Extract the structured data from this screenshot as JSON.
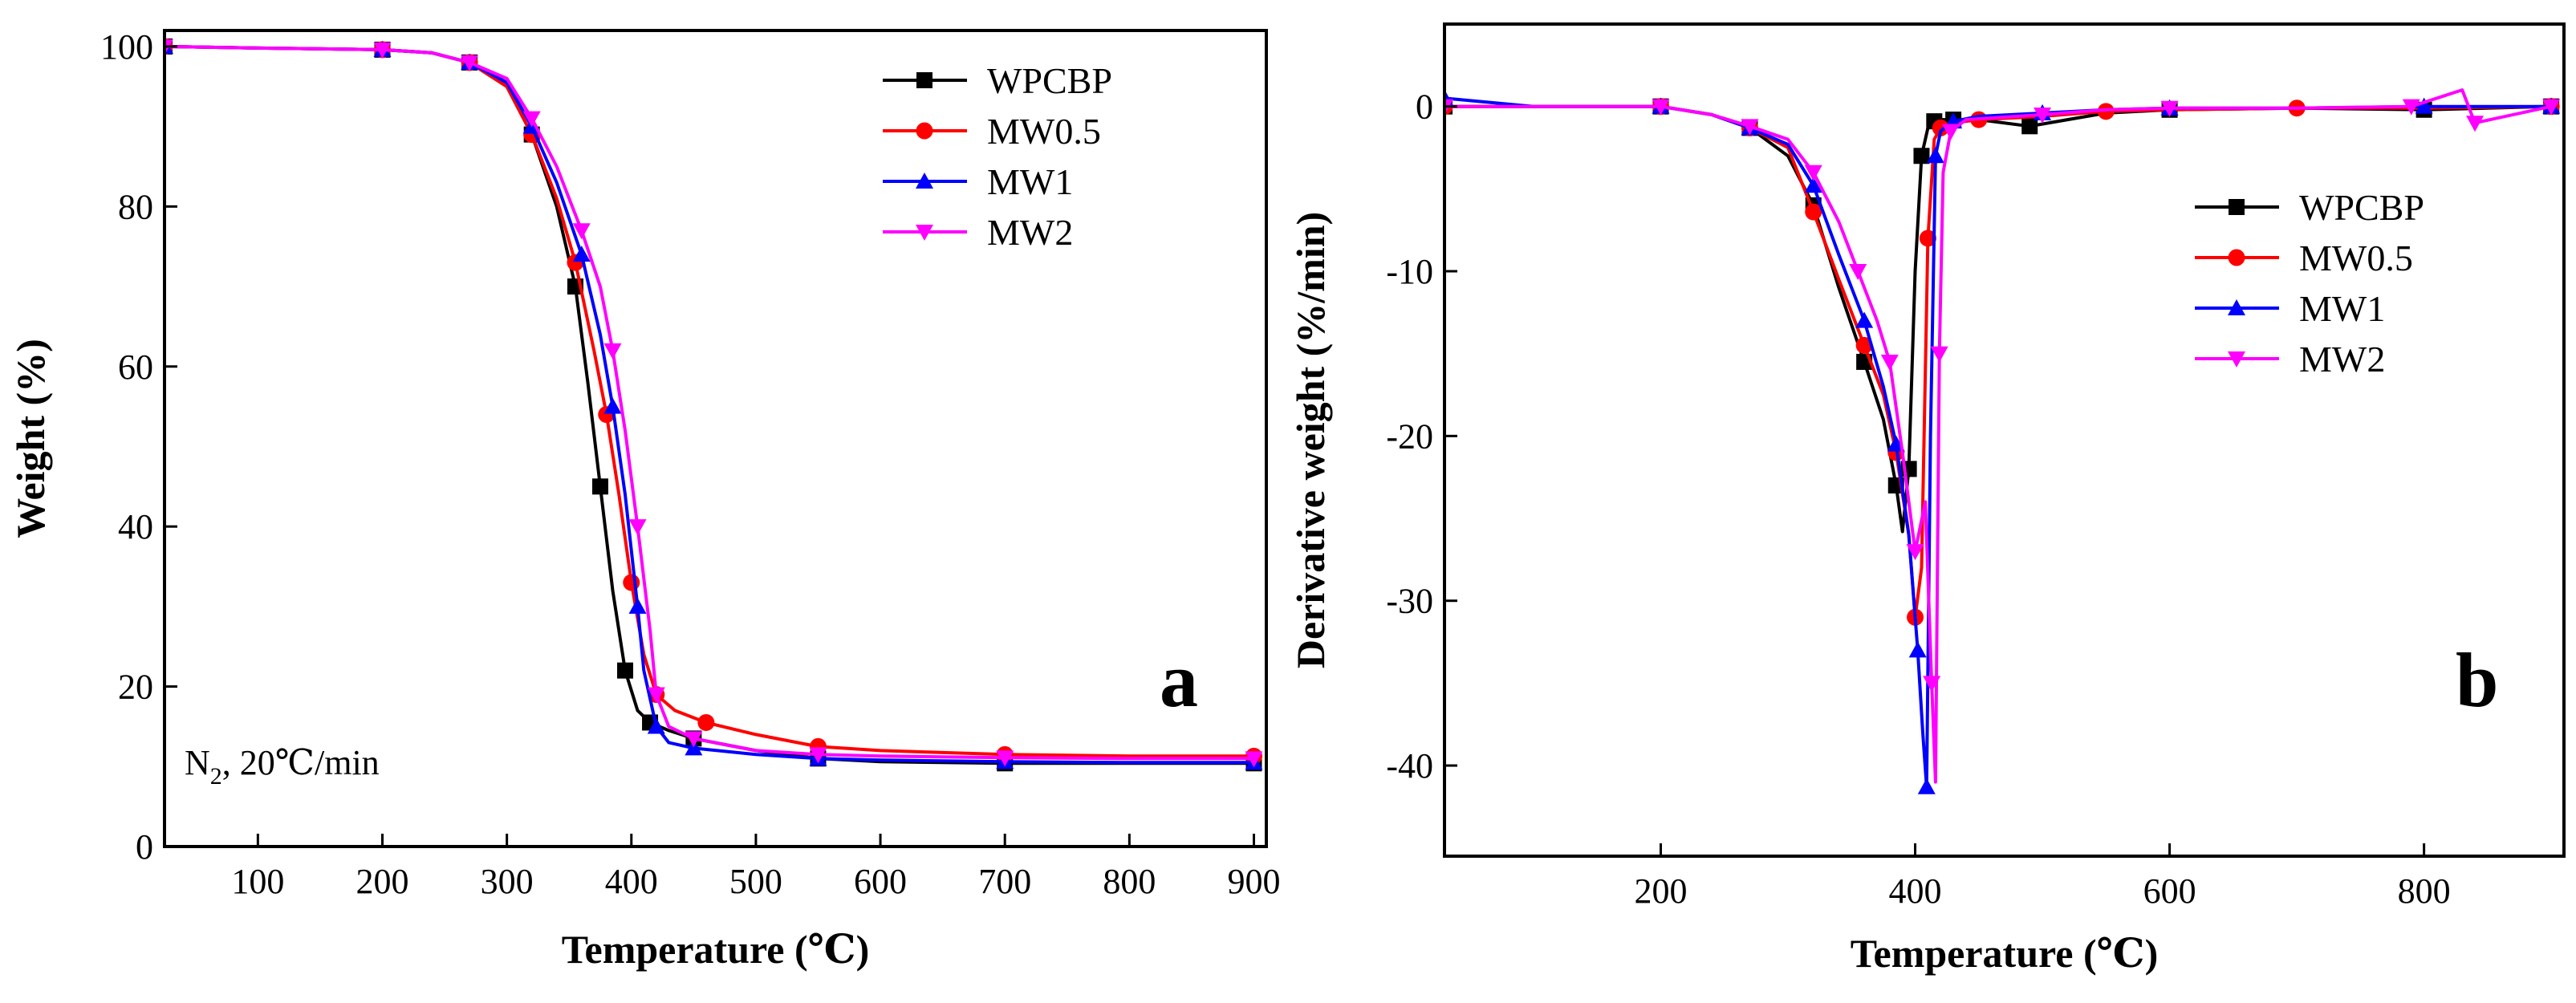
{
  "chart_data": [
    {
      "type": "line",
      "panel_label": "a",
      "xlabel": "Temperature (℃)",
      "ylabel": "Weight (%)",
      "xlim": [
        25,
        910
      ],
      "ylim": [
        0,
        102
      ],
      "xticks": [
        100,
        200,
        300,
        400,
        500,
        600,
        700,
        800,
        900
      ],
      "yticks": [
        0,
        20,
        40,
        60,
        80,
        100
      ],
      "annotation": {
        "main": "N",
        "sub": "2",
        "rest": ", 20℃/min"
      },
      "legend_position": "top-right",
      "series": [
        {
          "name": "WPCBP",
          "color": "#000000",
          "marker": "square",
          "x": [
            25,
            100,
            200,
            240,
            270,
            300,
            320,
            340,
            355,
            365,
            375,
            385,
            395,
            405,
            415,
            430,
            450,
            500,
            550,
            600,
            700,
            800,
            900
          ],
          "y": [
            100,
            99.8,
            99.6,
            99.2,
            98,
            95,
            89,
            80,
            70,
            58,
            45,
            32,
            22,
            17,
            15.5,
            14.5,
            13.5,
            12,
            11,
            10.6,
            10.4,
            10.4,
            10.4
          ]
        },
        {
          "name": "MW0.5",
          "color": "#ff0000",
          "marker": "circle",
          "x": [
            25,
            100,
            200,
            240,
            270,
            300,
            320,
            340,
            355,
            370,
            380,
            390,
            400,
            410,
            420,
            435,
            460,
            500,
            550,
            600,
            700,
            800,
            900
          ],
          "y": [
            100,
            99.8,
            99.6,
            99.2,
            98,
            95,
            89,
            81,
            73,
            62,
            54,
            44,
            33,
            24,
            19,
            17,
            15.5,
            14,
            12.5,
            12,
            11.5,
            11.3,
            11.3
          ]
        },
        {
          "name": "MW1",
          "color": "#0000ff",
          "marker": "triangle-up",
          "x": [
            25,
            100,
            200,
            240,
            270,
            300,
            320,
            340,
            360,
            375,
            385,
            395,
            405,
            410,
            420,
            430,
            450,
            500,
            550,
            600,
            700,
            800,
            900
          ],
          "y": [
            100,
            99.8,
            99.6,
            99.2,
            98,
            95.5,
            90,
            83,
            74,
            64,
            55,
            44,
            30,
            22,
            15,
            13,
            12.3,
            11.5,
            11,
            10.8,
            10.6,
            10.5,
            10.5
          ]
        },
        {
          "name": "MW2",
          "color": "#ff00ff",
          "marker": "triangle-down",
          "x": [
            25,
            100,
            200,
            240,
            270,
            300,
            320,
            340,
            360,
            375,
            385,
            395,
            405,
            415,
            420,
            430,
            450,
            500,
            550,
            600,
            700,
            800,
            900
          ],
          "y": [
            100,
            99.8,
            99.6,
            99.2,
            98,
            96,
            91,
            85,
            77,
            70,
            62,
            52,
            40,
            27,
            19,
            15,
            13.5,
            12,
            11.5,
            11.3,
            11.1,
            11,
            11
          ]
        }
      ]
    },
    {
      "type": "line",
      "panel_label": "b",
      "xlabel": "Temperature (℃)",
      "ylabel": "Derivative weight (%/min)",
      "xlim": [
        30,
        910
      ],
      "ylim": [
        -45.5,
        5
      ],
      "xticks": [
        200,
        400,
        600,
        800
      ],
      "yticks": [
        -40,
        -30,
        -20,
        -10,
        0
      ],
      "legend_position": "right",
      "series": [
        {
          "name": "WPCBP",
          "color": "#000000",
          "marker": "square",
          "x": [
            30,
            100,
            200,
            240,
            270,
            300,
            320,
            340,
            360,
            375,
            385,
            390,
            395,
            400,
            405,
            410,
            415,
            420,
            430,
            450,
            490,
            550,
            600,
            700,
            800,
            900
          ],
          "y": [
            0,
            0,
            0,
            -0.5,
            -1.3,
            -3,
            -6,
            -11,
            -15.5,
            -19,
            -23,
            -25.8,
            -22,
            -10,
            -3,
            -1.3,
            -0.9,
            -0.8,
            -0.8,
            -0.8,
            -1.2,
            -0.4,
            -0.2,
            -0.1,
            -0.2,
            0
          ]
        },
        {
          "name": "MW0.5",
          "color": "#ff0000",
          "marker": "circle",
          "x": [
            30,
            100,
            200,
            240,
            270,
            300,
            320,
            340,
            360,
            375,
            385,
            395,
            400,
            405,
            410,
            415,
            420,
            430,
            450,
            500,
            550,
            600,
            700,
            800,
            900
          ],
          "y": [
            0,
            0,
            0,
            -0.5,
            -1.3,
            -2.5,
            -6.4,
            -10.5,
            -14.5,
            -17.5,
            -21,
            -26,
            -31,
            -28,
            -8,
            -2,
            -1.3,
            -1,
            -0.8,
            -0.6,
            -0.3,
            -0.2,
            -0.1,
            -0.1,
            0
          ]
        },
        {
          "name": "MW1",
          "color": "#0000ff",
          "marker": "triangle-up",
          "x": [
            30,
            100,
            200,
            240,
            270,
            300,
            320,
            340,
            360,
            375,
            385,
            395,
            402,
            406,
            409,
            412,
            416,
            420,
            430,
            450,
            500,
            550,
            600,
            700,
            800,
            900
          ],
          "y": [
            0.5,
            0,
            0,
            -0.5,
            -1.3,
            -2.3,
            -4.8,
            -9,
            -13,
            -17,
            -20.5,
            -26,
            -33,
            -38,
            -41.3,
            -20,
            -3,
            -1.5,
            -0.9,
            -0.6,
            -0.4,
            -0.2,
            -0.1,
            -0.1,
            0,
            0
          ]
        },
        {
          "name": "MW2",
          "color": "#ff00ff",
          "marker": "triangle-down",
          "x": [
            30,
            100,
            200,
            240,
            270,
            300,
            320,
            340,
            355,
            370,
            380,
            390,
            400,
            408,
            413,
            416,
            419,
            422,
            428,
            440,
            500,
            550,
            600,
            700,
            790,
            830,
            840,
            900
          ],
          "y": [
            0,
            0,
            0,
            -0.5,
            -1.2,
            -2,
            -4,
            -7,
            -10,
            -13,
            -15.5,
            -21,
            -27,
            -24,
            -35,
            -41,
            -15,
            -4,
            -1.5,
            -0.8,
            -0.5,
            -0.2,
            -0.1,
            -0.1,
            0,
            1,
            -1,
            0
          ]
        }
      ]
    }
  ]
}
